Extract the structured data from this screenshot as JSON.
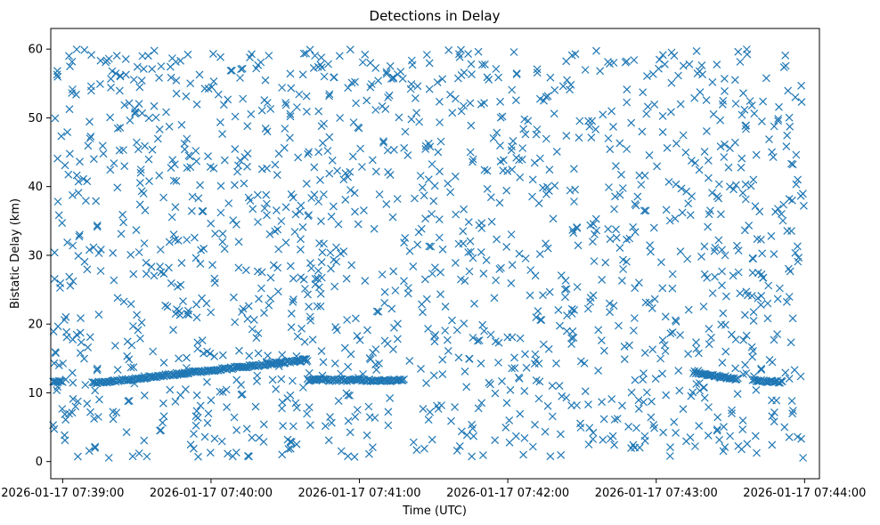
{
  "chart_data": {
    "type": "scatter",
    "title": "Detections in Delay",
    "xlabel": "Time (UTC)",
    "ylabel": "Bistatic Delay (km)",
    "marker": "x",
    "color": "#1f77b4",
    "x_unit": "minutes after 2026-01-17 07:39:00",
    "xlim": [
      -0.08,
      5.1
    ],
    "ylim": [
      -2.5,
      63
    ],
    "x_ticks": [
      {
        "value": 0,
        "label": "2026-01-17 07:39:00"
      },
      {
        "value": 1,
        "label": "2026-01-17 07:40:00"
      },
      {
        "value": 2,
        "label": "2026-01-17 07:41:00"
      },
      {
        "value": 3,
        "label": "2026-01-17 07:42:00"
      },
      {
        "value": 4,
        "label": "2026-01-17 07:43:00"
      },
      {
        "value": 5,
        "label": "2026-01-17 07:44:00"
      }
    ],
    "y_ticks": [
      {
        "value": 0,
        "label": "0"
      },
      {
        "value": 10,
        "label": "10"
      },
      {
        "value": 20,
        "label": "20"
      },
      {
        "value": 30,
        "label": "30"
      },
      {
        "value": 40,
        "label": "40"
      },
      {
        "value": 50,
        "label": "50"
      },
      {
        "value": 60,
        "label": "60"
      }
    ],
    "track_segments": [
      {
        "x_start": -0.08,
        "x_end": 0.0,
        "y_start": 11.7,
        "y_end": 11.6
      },
      {
        "x_start": 0.2,
        "x_end": 1.65,
        "y_start": 11.4,
        "y_end": 14.8
      },
      {
        "x_start": 1.65,
        "x_end": 2.3,
        "y_start": 11.9,
        "y_end": 11.8
      },
      {
        "x_start": 4.25,
        "x_end": 4.55,
        "y_start": 13.0,
        "y_end": 12.0
      },
      {
        "x_start": 4.65,
        "x_end": 4.85,
        "y_start": 11.8,
        "y_end": 11.6
      }
    ],
    "clutter": {
      "distribution": "uniform",
      "count": 1500,
      "x_range": [
        -0.08,
        5.0
      ],
      "y_range": [
        0.5,
        60
      ]
    }
  }
}
